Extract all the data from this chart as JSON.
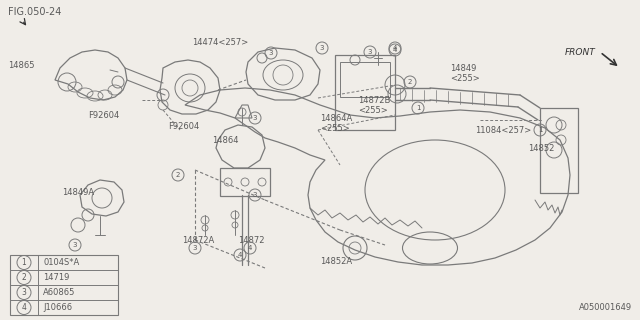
{
  "fig_ref": "FIG.050-24",
  "catalog_num": "A050001649",
  "bg": "#f0ede8",
  "lc": "#7a7a7a",
  "tc": "#5a5a5a",
  "legend": [
    {
      "num": "1",
      "code": "0104S*A"
    },
    {
      "num": "2",
      "code": "14719"
    },
    {
      "num": "3",
      "code": "A60865"
    },
    {
      "num": "4",
      "code": "J10666"
    }
  ]
}
